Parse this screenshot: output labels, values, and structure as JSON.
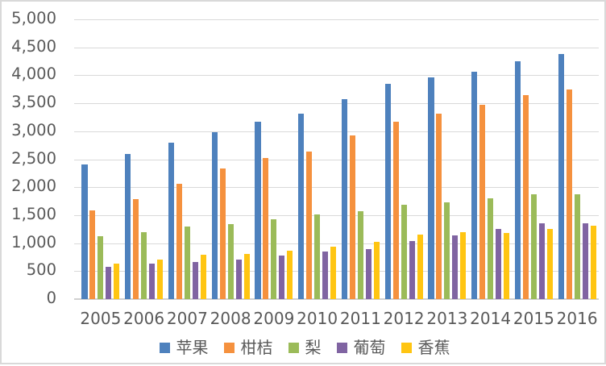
{
  "chart_data": {
    "type": "bar",
    "title": "",
    "categories": [
      "2005",
      "2006",
      "2007",
      "2008",
      "2009",
      "2010",
      "2011",
      "2012",
      "2013",
      "2014",
      "2015",
      "2016"
    ],
    "series": [
      {
        "name": "苹果",
        "color": "#4E81BD",
        "values": [
          2400,
          2600,
          2790,
          2980,
          3170,
          3320,
          3580,
          3850,
          3960,
          4070,
          4250,
          4380
        ]
      },
      {
        "name": "柑桔",
        "color": "#F5913E",
        "values": [
          1580,
          1790,
          2060,
          2330,
          2520,
          2630,
          2920,
          3170,
          3310,
          3480,
          3650,
          3750
        ]
      },
      {
        "name": "梨",
        "color": "#9BBB59",
        "values": [
          1130,
          1190,
          1290,
          1340,
          1420,
          1510,
          1570,
          1690,
          1730,
          1800,
          1870,
          1870
        ]
      },
      {
        "name": "葡萄",
        "color": "#8064A2",
        "values": [
          580,
          630,
          660,
          710,
          780,
          850,
          900,
          1040,
          1140,
          1250,
          1360,
          1360
        ]
      },
      {
        "name": "香蕉",
        "color": "#FFC512",
        "values": [
          640,
          700,
          790,
          800,
          870,
          940,
          1030,
          1150,
          1190,
          1180,
          1260,
          1310
        ]
      }
    ],
    "ylim": [
      0,
      5000
    ],
    "ytick_step": 500,
    "ytick_labels": [
      "0",
      "500",
      "1,000",
      "1,500",
      "2,000",
      "2,500",
      "3,000",
      "3,500",
      "4,000",
      "4,500",
      "5,000"
    ],
    "grid": true,
    "legend_position": "bottom"
  },
  "style": {
    "axis_text_color": "#595959",
    "gridline_color": "#D9D9D9",
    "axis_line_color": "#D0D0D0",
    "border_color": "#D9D9D9",
    "background": "#FFFFFF"
  }
}
